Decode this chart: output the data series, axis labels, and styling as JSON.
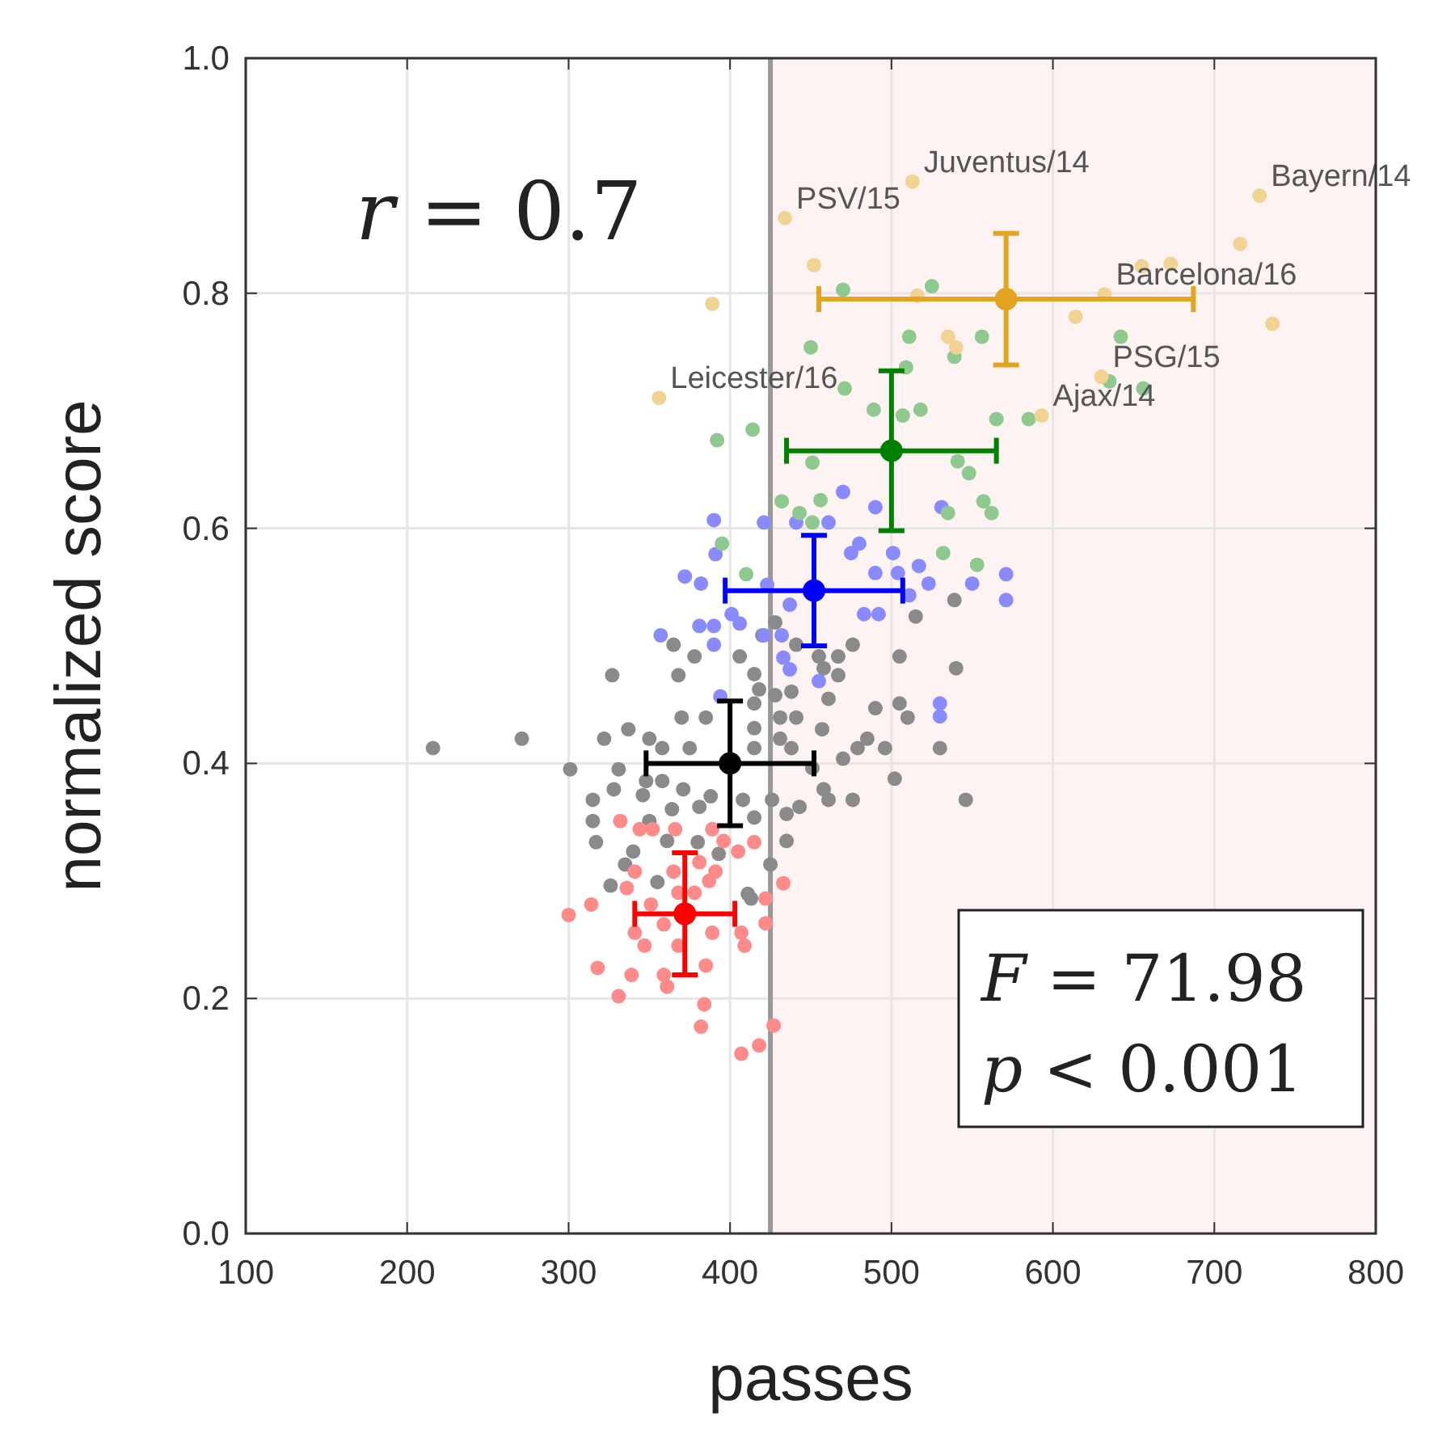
{
  "chart_data": {
    "type": "scatter",
    "xlabel": "passes",
    "ylabel": "normalized score",
    "xlim": [
      100,
      800
    ],
    "xticks": [
      100,
      200,
      300,
      400,
      500,
      600,
      700,
      800
    ],
    "ylim": [
      0,
      1
    ],
    "yticks": [
      {
        "value": 0,
        "label": "0.0"
      },
      {
        "value": 0.2,
        "label": "0.2"
      },
      {
        "value": 0.4,
        "label": "0.4"
      },
      {
        "value": 0.6,
        "label": "0.6"
      },
      {
        "value": 0.8,
        "label": "0.8"
      },
      {
        "value": 1,
        "label": "1.0"
      }
    ],
    "grid": true,
    "marker": "circle",
    "ref_lines": [
      {
        "axis": "x",
        "value": 425,
        "color": "#999999"
      }
    ],
    "bands": [
      {
        "axis": "x",
        "from": 425,
        "to": 800,
        "color": "#fdf3f2"
      }
    ],
    "series": [
      {
        "color": "#8a8a8a",
        "x": [
          216,
          271,
          301,
          327,
          322,
          337,
          350,
          331,
          315,
          317,
          315,
          328,
          346,
          348,
          365,
          378,
          368,
          385,
          370,
          358,
          375,
          358,
          371,
          364,
          350,
          340,
          335,
          326,
          355,
          361,
          380,
          388,
          381,
          393,
          408,
          415,
          411,
          425,
          435,
          435,
          443,
          426,
          406,
          415,
          418,
          415,
          428,
          438,
          431,
          441,
          415,
          431,
          415,
          438,
          457,
          461,
          467,
          458,
          455,
          467,
          476,
          441,
          428,
          420,
          505,
          515,
          539,
          540,
          490,
          505,
          510,
          485,
          496,
          479,
          470,
          502,
          530,
          546,
          476,
          461,
          458,
          451,
          413
        ],
        "values": [
          0.413,
          0.421,
          0.395,
          0.475,
          0.421,
          0.429,
          0.421,
          0.395,
          0.369,
          0.333,
          0.351,
          0.378,
          0.373,
          0.385,
          0.501,
          0.491,
          0.475,
          0.439,
          0.439,
          0.413,
          0.413,
          0.385,
          0.378,
          0.361,
          0.351,
          0.325,
          0.314,
          0.296,
          0.299,
          0.334,
          0.333,
          0.372,
          0.363,
          0.323,
          0.369,
          0.354,
          0.289,
          0.314,
          0.334,
          0.357,
          0.363,
          0.369,
          0.491,
          0.476,
          0.463,
          0.451,
          0.458,
          0.461,
          0.439,
          0.439,
          0.43,
          0.421,
          0.413,
          0.413,
          0.429,
          0.455,
          0.475,
          0.481,
          0.491,
          0.491,
          0.501,
          0.501,
          0.52,
          0.509,
          0.491,
          0.525,
          0.539,
          0.481,
          0.447,
          0.451,
          0.439,
          0.421,
          0.413,
          0.413,
          0.404,
          0.387,
          0.413,
          0.369,
          0.369,
          0.369,
          0.378,
          0.396,
          0.285
        ]
      },
      {
        "color": "#ff8a8a",
        "x": [
          300,
          314,
          318,
          331,
          339,
          336,
          332,
          341,
          347,
          341,
          351,
          359,
          359,
          361,
          344,
          352,
          366,
          365,
          368,
          368,
          378,
          381,
          387,
          389,
          391,
          389,
          396,
          405,
          415,
          407,
          409,
          385,
          384,
          382,
          422,
          422,
          433,
          427,
          418,
          407
        ],
        "values": [
          0.271,
          0.28,
          0.226,
          0.202,
          0.22,
          0.294,
          0.351,
          0.308,
          0.245,
          0.256,
          0.28,
          0.263,
          0.22,
          0.21,
          0.344,
          0.344,
          0.344,
          0.308,
          0.29,
          0.245,
          0.29,
          0.316,
          0.3,
          0.256,
          0.308,
          0.344,
          0.334,
          0.325,
          0.333,
          0.256,
          0.245,
          0.228,
          0.195,
          0.176,
          0.285,
          0.264,
          0.298,
          0.177,
          0.16,
          0.153
        ]
      },
      {
        "color": "#8a8aff",
        "x": [
          390,
          391,
          421,
          441,
          461,
          470,
          490,
          531,
          372,
          382,
          423,
          437,
          480,
          475,
          501,
          490,
          504,
          517,
          523,
          550,
          571,
          571,
          511,
          483,
          492,
          401,
          406,
          381,
          390,
          357,
          390,
          421,
          432,
          433,
          437,
          455,
          530,
          530,
          394
        ],
        "values": [
          0.607,
          0.578,
          0.605,
          0.605,
          0.605,
          0.631,
          0.618,
          0.618,
          0.559,
          0.553,
          0.552,
          0.535,
          0.587,
          0.579,
          0.579,
          0.562,
          0.562,
          0.568,
          0.553,
          0.553,
          0.561,
          0.539,
          0.543,
          0.527,
          0.527,
          0.527,
          0.519,
          0.517,
          0.517,
          0.509,
          0.501,
          0.509,
          0.509,
          0.49,
          0.48,
          0.47,
          0.451,
          0.44,
          0.457
        ]
      },
      {
        "color": "#8fc98f",
        "x": [
          470,
          525,
          450,
          511,
          556,
          539,
          509,
          642,
          635,
          656,
          471,
          489,
          518,
          507,
          565,
          585,
          392,
          414,
          451,
          541,
          548,
          432,
          443,
          456,
          557,
          562,
          451,
          395,
          410,
          532,
          553,
          535
        ],
        "values": [
          0.803,
          0.806,
          0.754,
          0.763,
          0.763,
          0.746,
          0.737,
          0.763,
          0.725,
          0.719,
          0.719,
          0.701,
          0.701,
          0.696,
          0.693,
          0.693,
          0.675,
          0.684,
          0.656,
          0.657,
          0.647,
          0.623,
          0.613,
          0.624,
          0.623,
          0.613,
          0.605,
          0.587,
          0.561,
          0.579,
          0.569,
          0.613
        ]
      },
      {
        "color": "#f1d393",
        "x": [
          434,
          513,
          728,
          452,
          389,
          516,
          535,
          540,
          632,
          614,
          655,
          673,
          716,
          736,
          630,
          593,
          356
        ],
        "values": [
          0.864,
          0.895,
          0.883,
          0.824,
          0.791,
          0.798,
          0.763,
          0.754,
          0.799,
          0.78,
          0.823,
          0.825,
          0.842,
          0.774,
          0.729,
          0.696,
          0.711
        ]
      },
      {
        "color": "#ff0000",
        "x": [
          372
        ],
        "values": [
          0.272
        ],
        "errors": [
          0.052
        ],
        "xerrors": [
          31
        ]
      },
      {
        "color": "#000000",
        "x": [
          400
        ],
        "values": [
          0.4
        ],
        "errors": [
          0.053
        ],
        "xerrors": [
          52
        ]
      },
      {
        "color": "#0000ff",
        "x": [
          452
        ],
        "values": [
          0.547
        ],
        "errors": [
          0.047
        ],
        "xerrors": [
          55
        ]
      },
      {
        "color": "#008000",
        "x": [
          500
        ],
        "values": [
          0.666
        ],
        "errors": [
          0.068
        ],
        "xerrors": [
          65
        ]
      },
      {
        "color": "#e3a521",
        "x": [
          571
        ],
        "values": [
          0.795
        ],
        "errors": [
          0.056
        ],
        "xerrors": [
          116
        ]
      }
    ],
    "annotations": [
      {
        "text": "PSV/15",
        "x": 434,
        "y": 0.864
      },
      {
        "text": "Juventus/14",
        "x": 513,
        "y": 0.895
      },
      {
        "text": "Bayern/14",
        "x": 728,
        "y": 0.883
      },
      {
        "text": "Barcelona/16",
        "x": 632,
        "y": 0.799
      },
      {
        "text": "PSG/15",
        "x": 630,
        "y": 0.729
      },
      {
        "text": "Ajax/14",
        "x": 593,
        "y": 0.696
      },
      {
        "text": "Leicester/16",
        "x": 356,
        "y": 0.711
      },
      "r = 0.7",
      "F = 71.98",
      "p < 0.001"
    ]
  }
}
